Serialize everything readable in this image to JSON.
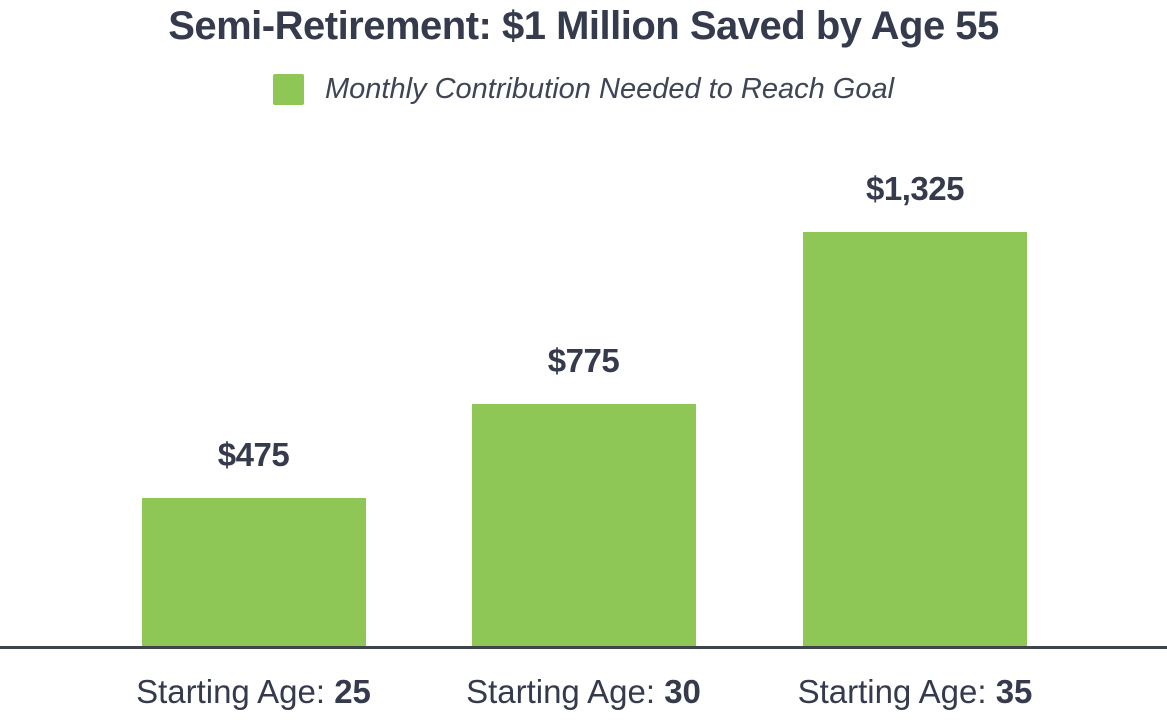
{
  "page": {
    "background": "#FFFFFF"
  },
  "chart_data": {
    "type": "bar",
    "title": "Semi-Retirement: $1 Million Saved by Age 55",
    "legend": {
      "label": "Monthly Contribution Needed to Reach Goal",
      "position": "top",
      "swatch_color": "#8EC755"
    },
    "series_name": "Monthly Contribution Needed to Reach Goal",
    "categories": [
      "Starting Age: 25",
      "Starting Age: 30",
      "Starting Age: 35"
    ],
    "category_prefix": "Starting Age:",
    "category_numbers": [
      "25",
      "30",
      "35"
    ],
    "values": [
      475,
      775,
      1325
    ],
    "value_labels": [
      "$475",
      "$775",
      "$1,325"
    ],
    "bar_color": "#8EC755",
    "label_color": "#353B4D",
    "legend_text_color": "#3E4554",
    "axis_color": "#3F444C",
    "xlabel": "",
    "ylabel": "",
    "ylim": [
      0,
      1400
    ],
    "grid": false
  }
}
